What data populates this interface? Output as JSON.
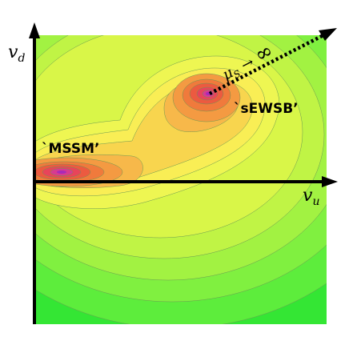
{
  "axes": {
    "x_label": "v",
    "x_sub": "u",
    "y_label": "v",
    "y_sub": "d"
  },
  "regions": {
    "mssm_label": "`MSSM’",
    "sewsb_label": "`sEWSB’"
  },
  "limit": {
    "mu": "μ",
    "sub": "S",
    "arrow": "→",
    "infinity": "∞"
  },
  "colors": {
    "outer": "#2ee82e",
    "mid": "#d8f53a",
    "yellow": "#f7f25a",
    "orange": "#f7b74a",
    "deep_orange": "#f38a3c",
    "red": "#ea4b4b",
    "magenta": "#b024b3"
  }
}
